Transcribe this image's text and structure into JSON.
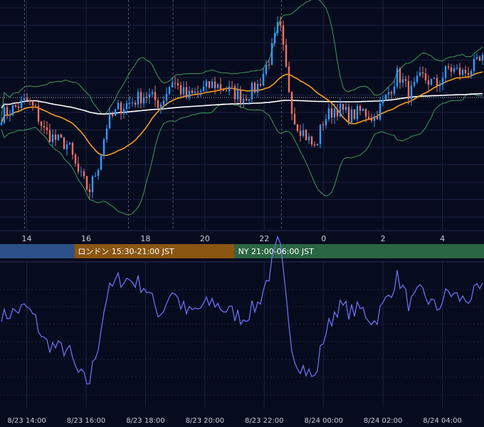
{
  "chart_data": [
    {
      "type": "candlestick",
      "panel": "price",
      "x_tick_labels": [
        "14",
        "16",
        "18",
        "20",
        "22",
        "0",
        "2",
        "4"
      ],
      "x_tick_hours": [
        14,
        16,
        18,
        20,
        22,
        24,
        26,
        28
      ],
      "x_range_hours": [
        13.1,
        29.4
      ],
      "overlays": [
        "bollinger-bands",
        "moving-average-orange",
        "moving-average-white"
      ],
      "grid": true,
      "colors": {
        "up": "#2f9bff",
        "down": "#f0715f",
        "bollinger": "#3f9a5b",
        "ma_orange": "#f5a020",
        "ma_white": "#ffffff"
      },
      "sessions": [
        {
          "label": "",
          "start_hour": 13.1,
          "end_hour": 15.6,
          "color": "#2c5088"
        },
        {
          "label": "ロンドン 15:30-21:00 JST",
          "start_hour": 15.6,
          "end_hour": 21.0,
          "color": "#8a5612"
        },
        {
          "label": "NY 21:00-06:00 JST",
          "start_hour": 21.0,
          "end_hour": 29.4,
          "color": "#2b6642"
        }
      ]
    },
    {
      "type": "line",
      "panel": "oscillator",
      "x_tick_labels": [
        "8/23 14:00",
        "8/23 16:00",
        "8/23 18:00",
        "8/23 20:00",
        "8/23 22:00",
        "8/24 00:00",
        "8/24 02:00",
        "8/24 04:00"
      ],
      "x_tick_hours": [
        14,
        16,
        18,
        20,
        22,
        24,
        26,
        28
      ],
      "series_color": "#6a6ff0",
      "grid": true
    }
  ]
}
